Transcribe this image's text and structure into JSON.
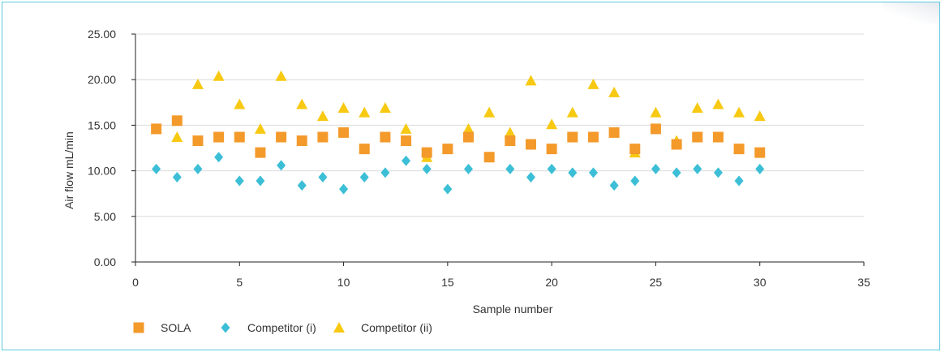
{
  "chart_data": {
    "type": "scatter",
    "title": "",
    "xlabel": "Sample number",
    "ylabel": "Air flow mL/min",
    "xlim": [
      0,
      35
    ],
    "ylim": [
      0,
      25
    ],
    "x_ticks": [
      "0",
      "5",
      "10",
      "15",
      "20",
      "25",
      "30",
      "35"
    ],
    "y_ticks": [
      "0.00",
      "5.00",
      "10.00",
      "15.00",
      "20.00",
      "25.00"
    ],
    "grid": "horizontal",
    "legend_position": "bottom-left",
    "series": [
      {
        "name": "SOLA",
        "marker": "square",
        "color": "#f39a2b",
        "x": [
          1,
          2,
          3,
          4,
          5,
          6,
          7,
          8,
          9,
          10,
          11,
          12,
          13,
          14,
          15,
          16,
          17,
          18,
          19,
          20,
          21,
          22,
          23,
          24,
          25,
          26,
          27,
          28,
          29,
          30
        ],
        "y": [
          14.6,
          15.5,
          13.3,
          13.7,
          13.7,
          12.0,
          13.7,
          13.3,
          13.7,
          14.2,
          12.4,
          13.7,
          13.3,
          12.0,
          12.4,
          13.7,
          11.5,
          13.3,
          12.9,
          12.4,
          13.7,
          13.7,
          14.2,
          12.4,
          14.6,
          12.9,
          13.7,
          13.7,
          12.4,
          12.0
        ]
      },
      {
        "name": "Competitor (i)",
        "marker": "diamond",
        "color": "#3cbfd6",
        "x": [
          1,
          2,
          3,
          4,
          5,
          6,
          7,
          8,
          9,
          10,
          11,
          12,
          13,
          14,
          15,
          16,
          17,
          18,
          19,
          20,
          21,
          22,
          23,
          24,
          25,
          26,
          27,
          28,
          29,
          30
        ],
        "y": [
          10.2,
          9.3,
          10.2,
          11.5,
          8.9,
          8.9,
          10.6,
          8.4,
          9.3,
          8.0,
          9.3,
          9.8,
          11.1,
          10.2,
          8.0,
          10.2,
          null,
          10.2,
          9.3,
          10.2,
          9.8,
          9.8,
          8.4,
          8.9,
          10.2,
          9.8,
          10.2,
          9.8,
          8.9,
          10.2
        ]
      },
      {
        "name": "Competitor (ii)",
        "marker": "triangle",
        "color": "#f7c912",
        "x": [
          1,
          2,
          3,
          4,
          5,
          6,
          7,
          8,
          9,
          10,
          11,
          12,
          13,
          14,
          15,
          16,
          17,
          18,
          19,
          20,
          21,
          22,
          23,
          24,
          25,
          26,
          27,
          28,
          29,
          30
        ],
        "y": [
          14.6,
          13.7,
          19.5,
          20.4,
          17.3,
          14.6,
          20.4,
          17.3,
          16.0,
          16.9,
          16.4,
          16.9,
          14.6,
          11.5,
          12.4,
          14.6,
          16.4,
          14.2,
          19.9,
          15.1,
          16.4,
          19.5,
          18.6,
          12.0,
          16.4,
          13.3,
          16.9,
          17.3,
          16.4,
          16.0
        ]
      }
    ]
  }
}
